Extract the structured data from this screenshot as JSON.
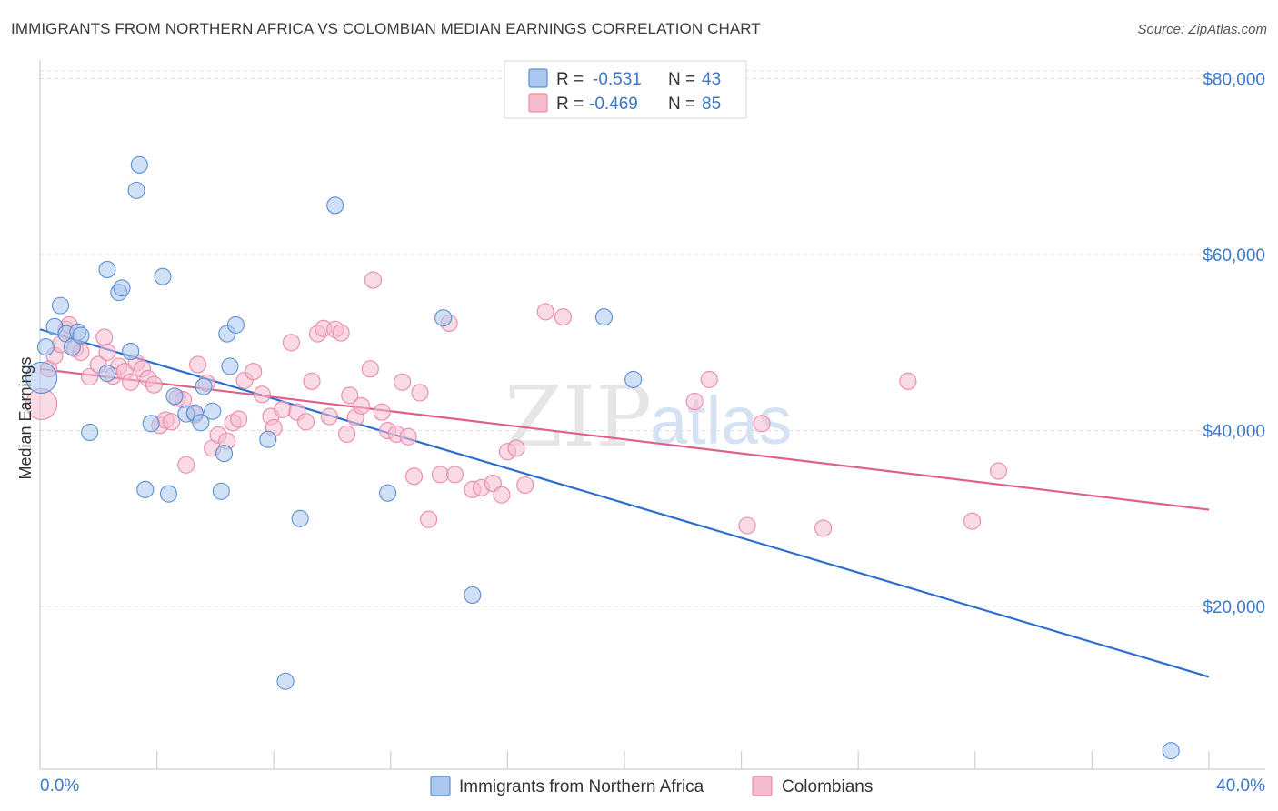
{
  "title": "IMMIGRANTS FROM NORTHERN AFRICA VS COLOMBIAN MEDIAN EARNINGS CORRELATION CHART",
  "source": "Source: ZipAtlas.com",
  "watermark": {
    "zip": "ZIP",
    "atlas": "atlas"
  },
  "legend": {
    "rows": [
      {
        "r_label": "R =",
        "r_value": "-0.531",
        "n_label": "N =",
        "n_value": "43",
        "color": "#aac7ee"
      },
      {
        "r_label": "R =",
        "r_value": "-0.469",
        "n_label": "N =",
        "n_value": "85",
        "color": "#f5bccd"
      }
    ]
  },
  "bottom_legend": [
    {
      "label": "Immigrants from Northern Africa",
      "color": "#aac7ee"
    },
    {
      "label": "Colombians",
      "color": "#f5bccd"
    }
  ],
  "chart_data": {
    "type": "scatter",
    "title": "IMMIGRANTS FROM NORTHERN AFRICA VS COLOMBIAN MEDIAN EARNINGS CORRELATION CHART",
    "xlabel": "",
    "ylabel": "Median Earnings",
    "xlim": [
      0,
      40
    ],
    "ylim": [
      1500,
      81500
    ],
    "x_tick_labels": [
      "0.0%",
      "40.0%"
    ],
    "y_ticks": [
      20000,
      40000,
      60000,
      80000
    ],
    "y_tick_labels": [
      "$20,000",
      "$40,000",
      "$60,000",
      "$80,000"
    ],
    "grid": true,
    "legend_position": "top-center",
    "series": [
      {
        "name": "Immigrants from Northern Africa",
        "color": "#5b8fd6",
        "fill": "#aac7ee",
        "line_color": "#2d6fd0",
        "trend": {
          "x": [
            0,
            40
          ],
          "y": [
            51500,
            12000
          ]
        },
        "points": [
          {
            "x": 0.05,
            "y": 46000,
            "big": true
          },
          {
            "x": 0.2,
            "y": 49500
          },
          {
            "x": 0.5,
            "y": 51800
          },
          {
            "x": 0.7,
            "y": 54200
          },
          {
            "x": 0.9,
            "y": 51000
          },
          {
            "x": 1.1,
            "y": 49500
          },
          {
            "x": 1.3,
            "y": 51200
          },
          {
            "x": 1.4,
            "y": 50800
          },
          {
            "x": 1.7,
            "y": 39800
          },
          {
            "x": 2.3,
            "y": 46500
          },
          {
            "x": 2.3,
            "y": 58300
          },
          {
            "x": 2.7,
            "y": 55700
          },
          {
            "x": 2.8,
            "y": 56200
          },
          {
            "x": 3.1,
            "y": 49000
          },
          {
            "x": 3.3,
            "y": 67300
          },
          {
            "x": 3.4,
            "y": 70200
          },
          {
            "x": 3.6,
            "y": 33300
          },
          {
            "x": 3.8,
            "y": 40800
          },
          {
            "x": 4.2,
            "y": 57500
          },
          {
            "x": 4.4,
            "y": 32800
          },
          {
            "x": 4.6,
            "y": 43900
          },
          {
            "x": 5.0,
            "y": 41900
          },
          {
            "x": 5.3,
            "y": 42000
          },
          {
            "x": 5.5,
            "y": 40900
          },
          {
            "x": 5.6,
            "y": 45000
          },
          {
            "x": 5.9,
            "y": 42200
          },
          {
            "x": 6.2,
            "y": 33100
          },
          {
            "x": 6.3,
            "y": 37400
          },
          {
            "x": 6.4,
            "y": 51000
          },
          {
            "x": 6.5,
            "y": 47300
          },
          {
            "x": 6.7,
            "y": 52000
          },
          {
            "x": 7.8,
            "y": 39000
          },
          {
            "x": 8.4,
            "y": 11500
          },
          {
            "x": 8.9,
            "y": 30000
          },
          {
            "x": 10.1,
            "y": 65600
          },
          {
            "x": 11.9,
            "y": 32900
          },
          {
            "x": 13.8,
            "y": 52800
          },
          {
            "x": 14.8,
            "y": 21300
          },
          {
            "x": 19.3,
            "y": 52900
          },
          {
            "x": 20.3,
            "y": 45800
          },
          {
            "x": 38.7,
            "y": 3600
          }
        ]
      },
      {
        "name": "Colombians",
        "color": "#e98aa8",
        "fill": "#f5bccd",
        "line_color": "#e0608a",
        "trend": {
          "x": [
            0,
            40
          ],
          "y": [
            47000,
            31000
          ]
        },
        "points": [
          {
            "x": 0.05,
            "y": 43000,
            "big": true
          },
          {
            "x": 0.3,
            "y": 47000
          },
          {
            "x": 0.5,
            "y": 48500
          },
          {
            "x": 0.7,
            "y": 49800
          },
          {
            "x": 0.9,
            "y": 51500
          },
          {
            "x": 1.0,
            "y": 52000
          },
          {
            "x": 1.2,
            "y": 49300
          },
          {
            "x": 1.4,
            "y": 48900
          },
          {
            "x": 1.7,
            "y": 46100
          },
          {
            "x": 2.0,
            "y": 47500
          },
          {
            "x": 2.2,
            "y": 50600
          },
          {
            "x": 2.3,
            "y": 48900
          },
          {
            "x": 2.5,
            "y": 46200
          },
          {
            "x": 2.7,
            "y": 47300
          },
          {
            "x": 2.9,
            "y": 46700
          },
          {
            "x": 3.1,
            "y": 45500
          },
          {
            "x": 3.3,
            "y": 47700
          },
          {
            "x": 3.5,
            "y": 47000
          },
          {
            "x": 3.7,
            "y": 45900
          },
          {
            "x": 3.9,
            "y": 45200
          },
          {
            "x": 4.1,
            "y": 40600
          },
          {
            "x": 4.3,
            "y": 41200
          },
          {
            "x": 4.5,
            "y": 41000
          },
          {
            "x": 4.7,
            "y": 43700
          },
          {
            "x": 4.9,
            "y": 43500
          },
          {
            "x": 5.0,
            "y": 36100
          },
          {
            "x": 5.3,
            "y": 41800
          },
          {
            "x": 5.4,
            "y": 47500
          },
          {
            "x": 5.7,
            "y": 45400
          },
          {
            "x": 5.9,
            "y": 38000
          },
          {
            "x": 6.1,
            "y": 39500
          },
          {
            "x": 6.4,
            "y": 38800
          },
          {
            "x": 6.6,
            "y": 40900
          },
          {
            "x": 6.8,
            "y": 41300
          },
          {
            "x": 7.0,
            "y": 45700
          },
          {
            "x": 7.3,
            "y": 46700
          },
          {
            "x": 7.6,
            "y": 44100
          },
          {
            "x": 7.9,
            "y": 41600
          },
          {
            "x": 8.0,
            "y": 40300
          },
          {
            "x": 8.3,
            "y": 42400
          },
          {
            "x": 8.6,
            "y": 50000
          },
          {
            "x": 8.8,
            "y": 42100
          },
          {
            "x": 9.1,
            "y": 41000
          },
          {
            "x": 9.3,
            "y": 45600
          },
          {
            "x": 9.5,
            "y": 51000
          },
          {
            "x": 9.7,
            "y": 51600
          },
          {
            "x": 9.9,
            "y": 41600
          },
          {
            "x": 10.1,
            "y": 51500
          },
          {
            "x": 10.3,
            "y": 51100
          },
          {
            "x": 10.5,
            "y": 39600
          },
          {
            "x": 10.6,
            "y": 44000
          },
          {
            "x": 10.8,
            "y": 41500
          },
          {
            "x": 11.0,
            "y": 42800
          },
          {
            "x": 11.3,
            "y": 47000
          },
          {
            "x": 11.4,
            "y": 57100
          },
          {
            "x": 11.7,
            "y": 42100
          },
          {
            "x": 11.9,
            "y": 40000
          },
          {
            "x": 12.2,
            "y": 39600
          },
          {
            "x": 12.4,
            "y": 45500
          },
          {
            "x": 12.6,
            "y": 39300
          },
          {
            "x": 12.8,
            "y": 34800
          },
          {
            "x": 13.0,
            "y": 44300
          },
          {
            "x": 13.3,
            "y": 29900
          },
          {
            "x": 13.7,
            "y": 35000
          },
          {
            "x": 14.0,
            "y": 52200
          },
          {
            "x": 14.2,
            "y": 35000
          },
          {
            "x": 14.8,
            "y": 33300
          },
          {
            "x": 15.1,
            "y": 33500
          },
          {
            "x": 15.5,
            "y": 34000
          },
          {
            "x": 15.8,
            "y": 32700
          },
          {
            "x": 16.0,
            "y": 37600
          },
          {
            "x": 16.3,
            "y": 38000
          },
          {
            "x": 16.6,
            "y": 33800
          },
          {
            "x": 17.3,
            "y": 53500
          },
          {
            "x": 17.9,
            "y": 52900
          },
          {
            "x": 22.4,
            "y": 43300
          },
          {
            "x": 22.9,
            "y": 45800
          },
          {
            "x": 24.2,
            "y": 29200
          },
          {
            "x": 24.7,
            "y": 40800
          },
          {
            "x": 26.8,
            "y": 28900
          },
          {
            "x": 29.7,
            "y": 45600
          },
          {
            "x": 31.9,
            "y": 29700
          },
          {
            "x": 32.8,
            "y": 35400
          }
        ]
      }
    ]
  }
}
